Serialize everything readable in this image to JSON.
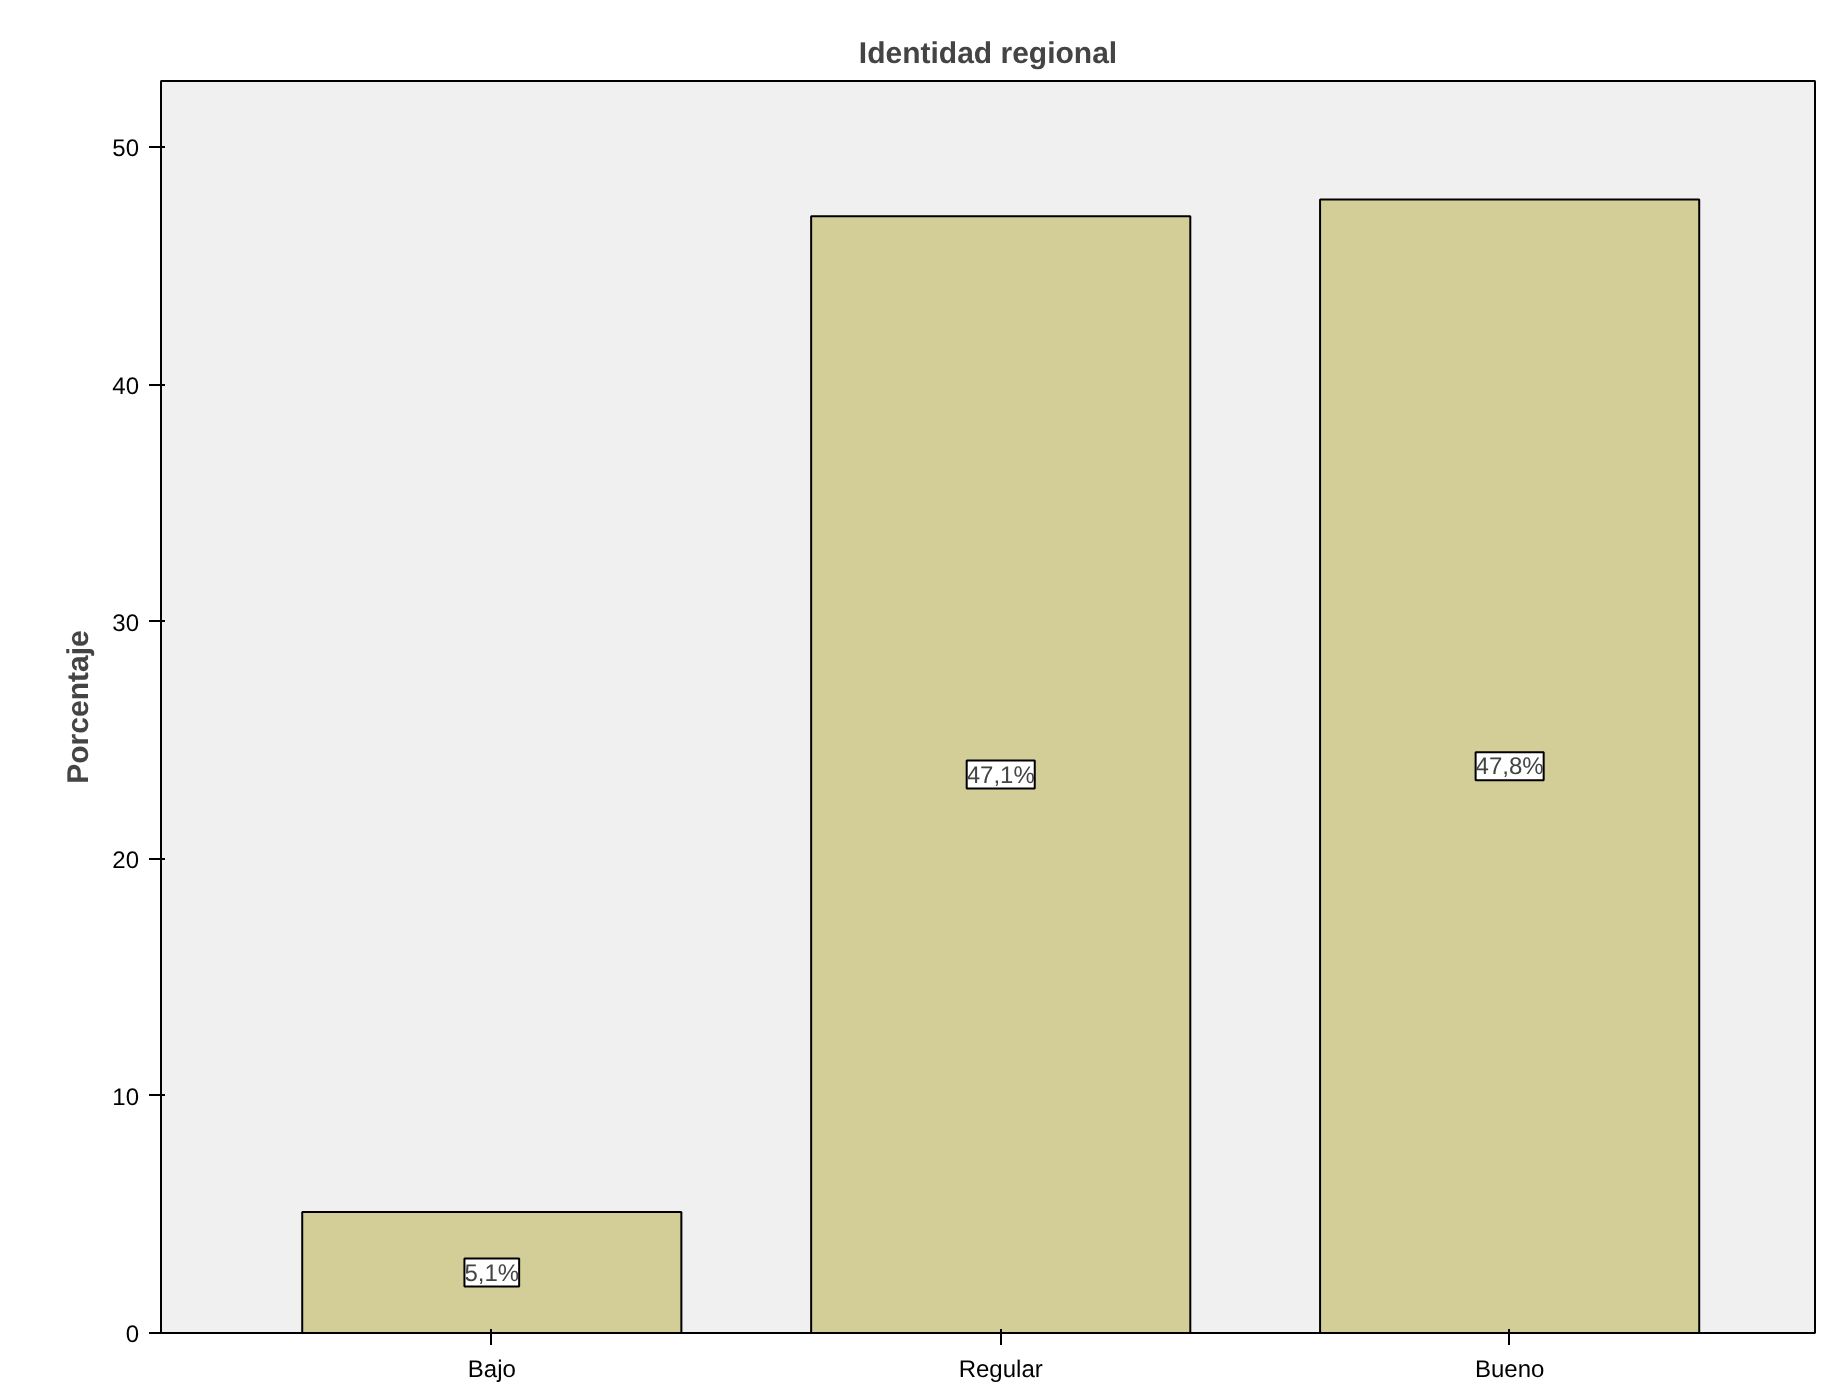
{
  "chart_data": {
    "type": "bar",
    "title": "Identidad regional",
    "ylabel": "Porcentaje",
    "categories": [
      "Bajo",
      "Regular",
      "Bueno"
    ],
    "values": [
      5.1,
      47.1,
      47.8
    ],
    "value_labels": [
      "5,1%",
      "47,1%",
      "47,8%"
    ],
    "color": "#d3ce97",
    "ylim": [
      0,
      52.8
    ],
    "yticks": [
      0,
      10,
      20,
      30,
      40,
      50
    ]
  }
}
